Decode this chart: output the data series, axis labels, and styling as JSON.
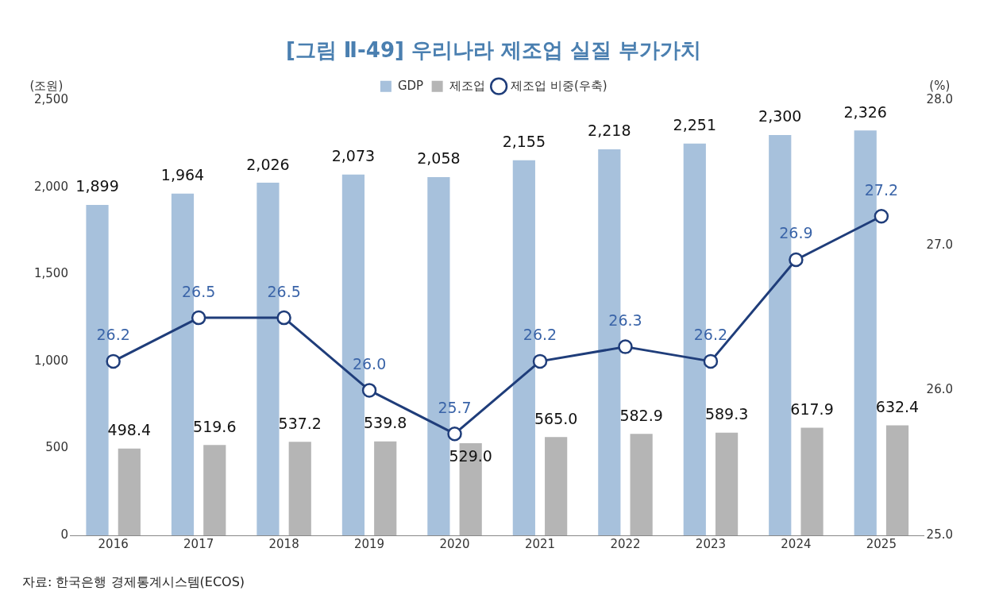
{
  "chart_data": {
    "type": "bar",
    "title": "[그림 Ⅱ-49] 우리나라 제조업 실질 부가가치",
    "ylabel": "(조원)",
    "y2label": "(%)",
    "categories": [
      "2016",
      "2017",
      "2018",
      "2019",
      "2020",
      "2021",
      "2022",
      "2023",
      "2024",
      "2025"
    ],
    "series": [
      {
        "name": "GDP",
        "color": "#a7c1dc",
        "values": [
          1899,
          1964,
          2026,
          2073,
          2058,
          2155,
          2218,
          2251,
          2300,
          2326
        ],
        "value_labels": [
          "1,899",
          "1,964",
          "2,026",
          "2,073",
          "2,058",
          "2,155",
          "2,218",
          "2,251",
          "2,300",
          "2,326"
        ]
      },
      {
        "name": "제조업",
        "color": "#b5b5b5",
        "values": [
          498.4,
          519.6,
          537.2,
          539.8,
          529.0,
          565.0,
          582.9,
          589.3,
          617.9,
          632.4
        ],
        "value_labels": [
          "498.4",
          "519.6",
          "537.2",
          "539.8",
          "529.0",
          "565.0",
          "582.9",
          "589.3",
          "617.9",
          "632.4"
        ]
      },
      {
        "name": "제조업 비중(우축)",
        "type": "line",
        "axis": "y2",
        "color": "#1f3d7a",
        "marker": "circle",
        "values": [
          26.2,
          26.5,
          26.5,
          26.0,
          25.7,
          26.2,
          26.3,
          26.2,
          26.9,
          27.2
        ],
        "value_labels": [
          "26.2",
          "26.5",
          "26.5",
          "26.0",
          "25.7",
          "26.2",
          "26.3",
          "26.2",
          "26.9",
          "27.2"
        ]
      }
    ],
    "ylim": [
      0,
      2500
    ],
    "yticks": [
      0,
      {
        "value": 500,
        "label": "500"
      },
      {
        "value": 1000,
        "label": "1,000"
      },
      {
        "value": 1500,
        "label": "1,500"
      },
      {
        "value": 2000,
        "label": "2,000"
      },
      {
        "value": 2500,
        "label": "2,500"
      }
    ],
    "y2lim": [
      25,
      28
    ],
    "y2ticks": [
      {
        "value": 25,
        "label": "25.0"
      },
      {
        "value": 26,
        "label": "26.0"
      },
      {
        "value": 27,
        "label": "27.0"
      },
      {
        "value": 28,
        "label": "28.0"
      }
    ],
    "grid": false,
    "legend": "top",
    "annotations": [
      "자료: 한국은행 경제통계시스템(ECOS)"
    ]
  }
}
